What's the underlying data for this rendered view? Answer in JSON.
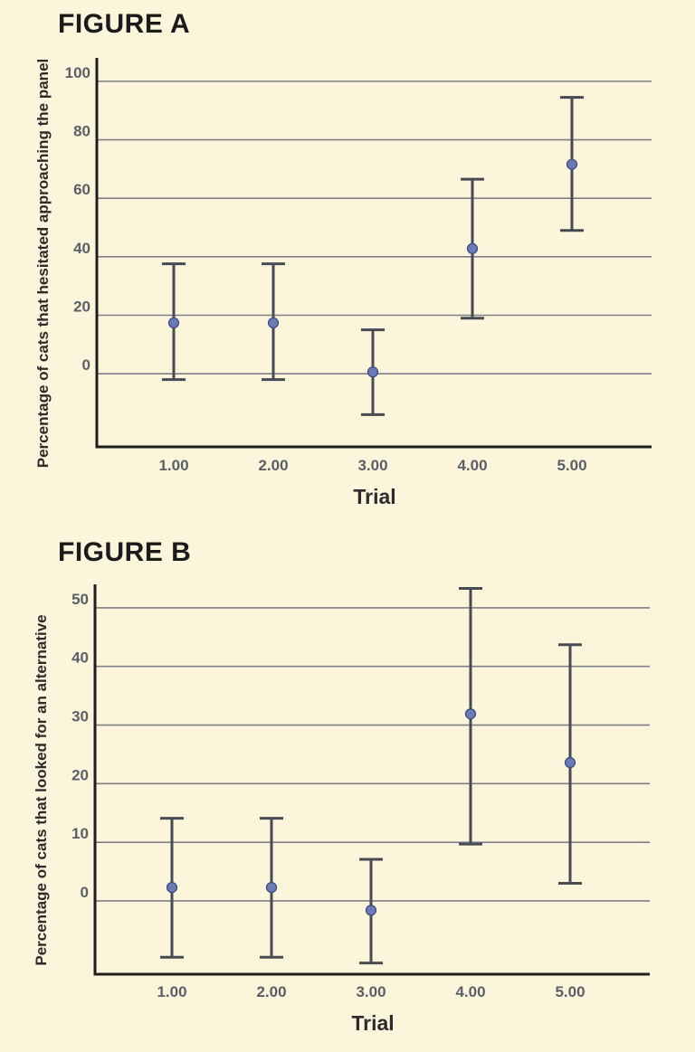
{
  "chart_data": [
    {
      "type": "scatter",
      "title": "FIGURE A",
      "xlabel": "Trial",
      "ylabel": "Percentage of cats that hesitated approaching the panel",
      "categories": [
        "1.00",
        "2.00",
        "3.00",
        "4.00",
        "5.00"
      ],
      "values": [
        17.4,
        17.4,
        0.6,
        42.8,
        71.6
      ],
      "error_low": [
        -2.0,
        -2.0,
        -14.0,
        19.0,
        49.0
      ],
      "error_high": [
        37.6,
        37.6,
        15.0,
        66.5,
        94.5
      ],
      "yticks": [
        0,
        20,
        40,
        60,
        80,
        100
      ],
      "ylim": [
        -25,
        108
      ],
      "grid": true
    },
    {
      "type": "scatter",
      "title": "FIGURE B",
      "xlabel": "Trial",
      "ylabel": "Percentage of cats that looked for an alternative",
      "categories": [
        "1.00",
        "2.00",
        "3.00",
        "4.00",
        "5.00"
      ],
      "values": [
        2.3,
        2.3,
        -1.6,
        31.9,
        23.6
      ],
      "error_low": [
        -9.6,
        -9.6,
        -10.6,
        9.7,
        3.0
      ],
      "error_high": [
        14.1,
        14.1,
        7.1,
        53.3,
        43.7
      ],
      "yticks": [
        0,
        10,
        20,
        30,
        40,
        50
      ],
      "ylim": [
        -12.5,
        54
      ],
      "grid": true
    }
  ]
}
